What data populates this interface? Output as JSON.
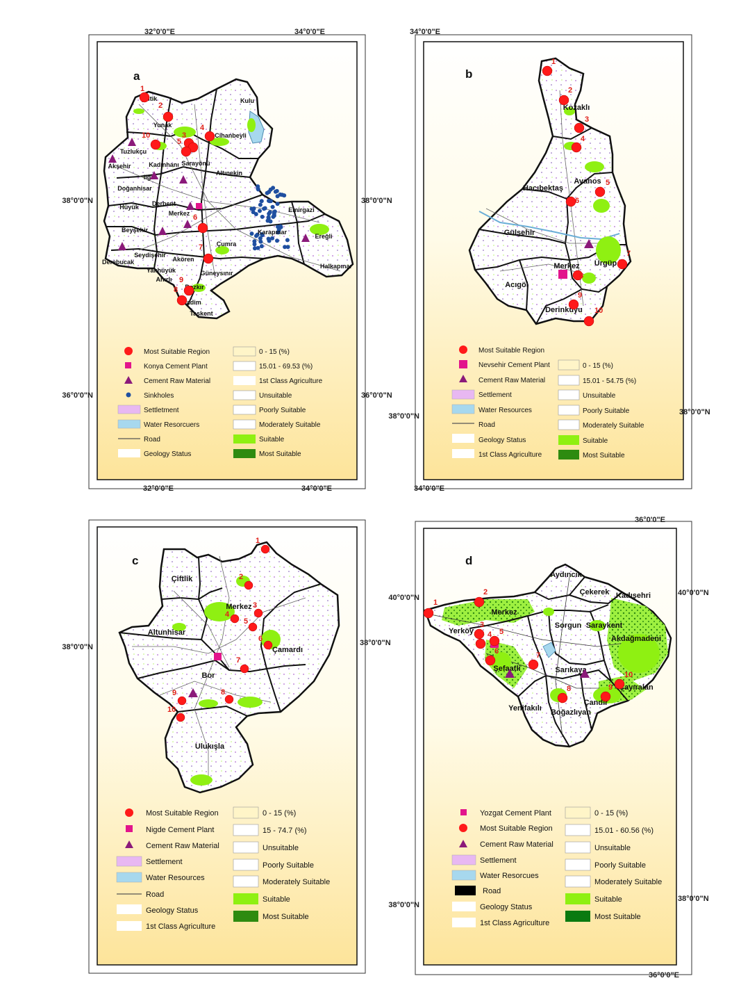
{
  "colors": {
    "frame_gradient_top": "#ffffff",
    "frame_gradient_bottom": "#fde49a",
    "most_suitable_region": "#ff1a1a",
    "cement_plant": "#e2158c",
    "raw_material": "#8b1a7a",
    "sinkholes": "#1f4fa0",
    "settlement": "#e8b8f2",
    "water": "#a7d8ee",
    "suitable": "#8ff012",
    "most_suitable": "#2e8b10",
    "class_0_15": "#fff5c8"
  },
  "panels": [
    {
      "id": "a",
      "label": "a",
      "coords": {
        "top": [
          "32°0'0\"E",
          "34°0'0\"E"
        ],
        "bottom": [
          "32°0'0\"E",
          "34°0'0\"E"
        ],
        "left": [
          "38°0'0\"N",
          "36°0'0\"N"
        ],
        "right": [
          "38°0'0\"N",
          "36°0'0\"N"
        ]
      },
      "districts": [
        "Çeltik",
        "Yunak",
        "Kulu",
        "Cihanbeyli",
        "Tuzlukçu",
        "Akşehir",
        "Kadınhanı",
        "Sarayönü",
        "Altınekin",
        "Ilgın",
        "Doğanhisar",
        "Derbent",
        "Hüyük",
        "Merkez",
        "Emirgazi",
        "Beyşehir",
        "Karapınar",
        "Ereğli",
        "Çumra",
        "Derebucak",
        "Seydişehir",
        "Akören",
        "Halkapınar",
        "Yalıhüyük",
        "Ahırlı",
        "Güneysınır",
        "Bozkır",
        "Hadim",
        "Taşkent"
      ],
      "numbers": [
        "1",
        "2",
        "3",
        "4",
        "5",
        "6",
        "7",
        "8",
        "9",
        "10"
      ],
      "legend_left": [
        {
          "symbol": "circle",
          "label": "Most Suitable Region"
        },
        {
          "symbol": "square",
          "label": "Konya Cement Plant"
        },
        {
          "symbol": "triangle",
          "label": "Cement Raw Material"
        },
        {
          "symbol": "dot",
          "label": "Sinkholes"
        },
        {
          "symbol": "settlement",
          "label": "Settletment"
        },
        {
          "symbol": "water",
          "label": "Water Resorcuers"
        },
        {
          "symbol": "road",
          "label": "Road"
        },
        {
          "symbol": "geology",
          "label": "Geology Status"
        }
      ],
      "legend_right": [
        {
          "symbol": "c0",
          "label": "0 - 15 (%)"
        },
        {
          "symbol": "c1",
          "label": "15.01 - 69.53 (%)"
        },
        {
          "symbol": "agri",
          "label": "1st Class Agriculture"
        },
        {
          "symbol": "uns",
          "label": "Unsuitable"
        },
        {
          "symbol": "poor",
          "label": "Poorly Suitable"
        },
        {
          "symbol": "mod",
          "label": "Moderately Suitable"
        },
        {
          "symbol": "suit",
          "label": "Suitable"
        },
        {
          "symbol": "most",
          "label": "Most Suitable"
        }
      ]
    },
    {
      "id": "b",
      "label": "b",
      "coords": {
        "top": [
          "34°0'0\"E"
        ],
        "bottom": [
          "34°0'0\"E"
        ],
        "left": [
          "38°0'0\"N"
        ],
        "right": [
          "38°0'0\"N"
        ]
      },
      "districts": [
        "Kozaklı",
        "Hacıbektaş",
        "Avanos",
        "Gülşehir",
        "Merkez",
        "Ürgüp",
        "Acıgöl",
        "Derinkuyu"
      ],
      "numbers": [
        "1",
        "2",
        "3",
        "4",
        "5",
        "6",
        "7",
        "8",
        "9",
        "10"
      ],
      "legend_left": [
        {
          "symbol": "circle",
          "label": "Most Suitable Region"
        },
        {
          "symbol": "square",
          "label": "Nevsehir Cement Plant"
        },
        {
          "symbol": "triangle",
          "label": "Cement Raw Material"
        },
        {
          "symbol": "settlement",
          "label": "Settlement"
        },
        {
          "symbol": "water",
          "label": "Water Resources"
        },
        {
          "symbol": "road",
          "label": "Road"
        },
        {
          "symbol": "geology",
          "label": "Geology Status"
        },
        {
          "symbol": "agri",
          "label": "1st Class Agriculture"
        }
      ],
      "legend_right": [
        {
          "symbol": "c0",
          "label": "0 - 15 (%)"
        },
        {
          "symbol": "c1",
          "label": "15.01 - 54.75 (%)"
        },
        {
          "symbol": "uns",
          "label": "Unsuitable"
        },
        {
          "symbol": "poor",
          "label": "Poorly Suitable"
        },
        {
          "symbol": "mod",
          "label": "Moderately Suitable"
        },
        {
          "symbol": "suit",
          "label": "Suitable"
        },
        {
          "symbol": "most",
          "label": "Most Suitable"
        }
      ]
    },
    {
      "id": "c",
      "label": "c",
      "coords": {
        "left": [
          "38°0'0\"N"
        ],
        "right": [
          "38°0'0\"N"
        ]
      },
      "districts": [
        "Çiftlik",
        "Merkez",
        "Altunhisar",
        "Çamardı",
        "Bor",
        "Ulukışla"
      ],
      "numbers": [
        "1",
        "2",
        "3",
        "4",
        "5",
        "6",
        "7",
        "8",
        "9",
        "10"
      ],
      "legend_left": [
        {
          "symbol": "circle",
          "label": "Most Suitable Region"
        },
        {
          "symbol": "square",
          "label": "Nigde Cement Plant"
        },
        {
          "symbol": "triangle",
          "label": "Cement Raw Material"
        },
        {
          "symbol": "settlement",
          "label": "Settlement"
        },
        {
          "symbol": "water",
          "label": "Water Resources"
        },
        {
          "symbol": "road",
          "label": "Road"
        },
        {
          "symbol": "geology",
          "label": "Geology Status"
        },
        {
          "symbol": "agri",
          "label": "1st Class Agriculture"
        }
      ],
      "legend_right": [
        {
          "symbol": "c0",
          "label": "0 - 15 (%)"
        },
        {
          "symbol": "c1",
          "label": "15 - 74.7 (%)"
        },
        {
          "symbol": "uns",
          "label": "Unsuitable"
        },
        {
          "symbol": "poor",
          "label": "Poorly Suitable"
        },
        {
          "symbol": "mod",
          "label": "Moderately Suitable"
        },
        {
          "symbol": "suit",
          "label": "Suitable"
        },
        {
          "symbol": "most",
          "label": "Most Suitable"
        }
      ]
    },
    {
      "id": "d",
      "label": "d",
      "coords": {
        "top": [
          "36°0'0\"E"
        ],
        "bottom": [
          "36°0'0\"E"
        ],
        "left": [
          "40°0'0\"N",
          "38°0'0\"N"
        ],
        "right": [
          "40°0'0\"N",
          "38°0'0\"N"
        ]
      },
      "districts": [
        "Aydıncık",
        "Çekerek",
        "Kadışehri",
        "Merkez",
        "Yerköy",
        "Sorgun",
        "Saraykent",
        "Akdağmadeni",
        "Şefaatli",
        "Sarıkaya",
        "Çayıralan",
        "Çandır",
        "Yenifakılı",
        "Boğazlıyan"
      ],
      "numbers": [
        "1",
        "2",
        "3",
        "4",
        "5",
        "6",
        "7",
        "8",
        "9",
        "10"
      ],
      "legend_left": [
        {
          "symbol": "square",
          "label": "Yozgat Cement Plant"
        },
        {
          "symbol": "circle",
          "label": "Most Suitable Region"
        },
        {
          "symbol": "triangle",
          "label": "Cement Raw Material"
        },
        {
          "symbol": "settlement",
          "label": "Settlement"
        },
        {
          "symbol": "water",
          "label": "Water Resorcues"
        },
        {
          "symbol": "road-black",
          "label": "Road"
        },
        {
          "symbol": "geology",
          "label": "Geology Status"
        },
        {
          "symbol": "agri",
          "label": "1st Class Agriculture"
        }
      ],
      "legend_right": [
        {
          "symbol": "c0",
          "label": "0 - 15 (%)"
        },
        {
          "symbol": "c1",
          "label": "15.01 - 60.56 (%)"
        },
        {
          "symbol": "uns",
          "label": "Unsuitable"
        },
        {
          "symbol": "poor",
          "label": "Poorly Suitable"
        },
        {
          "symbol": "mod",
          "label": "Moderately Suitable"
        },
        {
          "symbol": "suit",
          "label": "Suitable"
        },
        {
          "symbol": "most",
          "label": "Most Suitable"
        }
      ]
    }
  ]
}
